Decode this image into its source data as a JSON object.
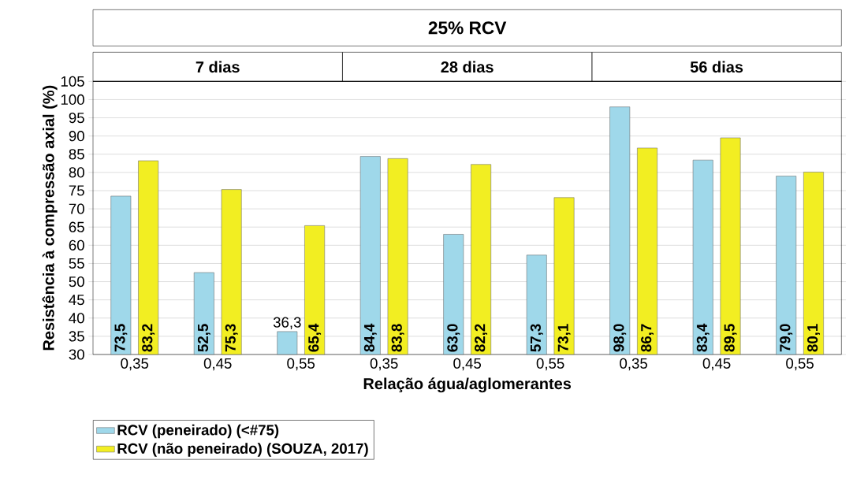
{
  "chart_data": {
    "type": "bar",
    "title": "25% RCV",
    "annotations": [
      "7 dias",
      "28 dias",
      "56 dias"
    ],
    "xlabel": "Relação água/aglomerantes",
    "ylabel": "Resistência à compressão axial (%)",
    "categories": [
      "0,35",
      "0,45",
      "0,55",
      "0,35",
      "0,45",
      "0,55",
      "0,35",
      "0,45",
      "0,55"
    ],
    "series": [
      {
        "name": "RCV (peneirado) (<#75)",
        "color": "#9fd8ea",
        "values": [
          73.5,
          52.5,
          36.3,
          84.4,
          63.0,
          57.3,
          98.0,
          83.4,
          79.0
        ],
        "value_labels": [
          "73,5",
          "52,5",
          "36,3",
          "84,4",
          "63,0",
          "57,3",
          "98,0",
          "83,4",
          "79,0"
        ]
      },
      {
        "name": "RCV (não peneirado) (SOUZA, 2017)",
        "color": "#f2ee22",
        "values": [
          83.2,
          75.3,
          65.4,
          83.8,
          82.2,
          73.1,
          86.7,
          89.5,
          80.1
        ],
        "value_labels": [
          "83,2",
          "75,3",
          "65,4",
          "83,8",
          "82,2",
          "73,1",
          "86,7",
          "89,5",
          "80,1"
        ]
      }
    ],
    "ylim": [
      30,
      105
    ],
    "yticks": [
      30,
      35,
      40,
      45,
      50,
      55,
      60,
      65,
      70,
      75,
      80,
      85,
      90,
      95,
      100,
      105
    ],
    "grid": "y",
    "legend": "bottom left"
  }
}
